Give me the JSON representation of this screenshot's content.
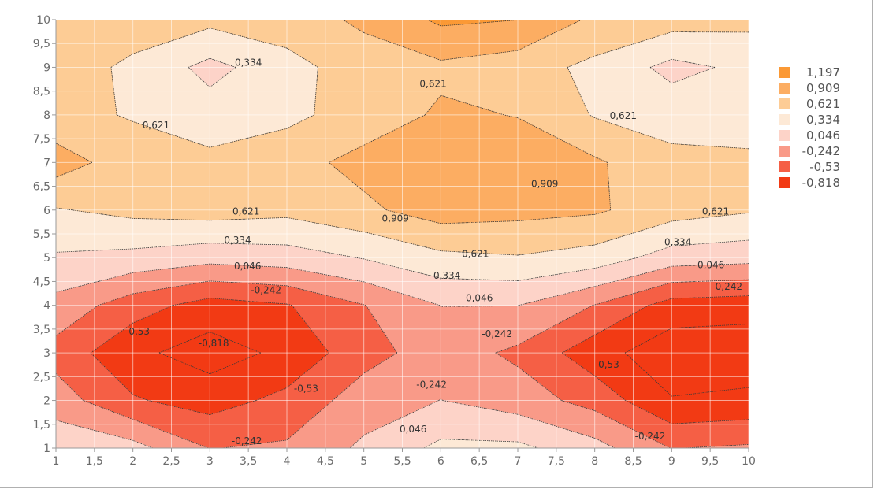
{
  "chart_data": {
    "type": "heatmap",
    "subtype": "filled-contour",
    "xlim": [
      1,
      10
    ],
    "ylim": [
      1,
      10
    ],
    "x_ticks": [
      "1",
      "1,5",
      "2",
      "2,5",
      "3",
      "3,5",
      "4",
      "4,5",
      "5",
      "5,5",
      "6",
      "6,5",
      "7",
      "7,5",
      "8",
      "8,5",
      "9",
      "9,5",
      "10"
    ],
    "y_ticks": [
      "1",
      "1,5",
      "2",
      "2,5",
      "3",
      "3,5",
      "4",
      "4,5",
      "5",
      "5,5",
      "6",
      "6,5",
      "7",
      "7,5",
      "8",
      "8,5",
      "9",
      "9,5",
      "10"
    ],
    "x": [
      1,
      2,
      3,
      4,
      5,
      6,
      7,
      8,
      9,
      10
    ],
    "y": [
      1,
      2,
      3,
      4,
      5,
      6,
      7,
      8,
      9,
      10
    ],
    "z": [
      [
        0.25,
        0.15,
        -0.25,
        -0.2,
        0.1,
        0.4,
        0.4,
        0.15,
        -0.25,
        -0.2
      ],
      [
        -0.1,
        -0.5,
        -0.65,
        -0.45,
        -0.1,
        0.05,
        -0.1,
        -0.35,
        -0.8,
        -0.75
      ],
      [
        -0.35,
        -0.75,
        -0.95,
        -0.75,
        -0.35,
        -0.1,
        -0.3,
        -0.7,
        -1.0,
        -1.0
      ],
      [
        -0.05,
        -0.4,
        -0.65,
        -0.55,
        -0.25,
        0.05,
        0.05,
        -0.25,
        -0.65,
        -0.7
      ],
      [
        0.3,
        0.25,
        0.15,
        0.2,
        0.35,
        0.55,
        0.6,
        0.5,
        0.2,
        0.15
      ],
      [
        0.6,
        0.7,
        0.75,
        0.7,
        0.85,
        1.05,
        1.0,
        0.95,
        0.75,
        0.65
      ],
      [
        1.05,
        0.75,
        0.7,
        0.8,
        1.0,
        1.1,
        1.05,
        0.95,
        0.7,
        0.65
      ],
      [
        0.7,
        0.6,
        0.45,
        0.55,
        0.75,
        0.95,
        0.9,
        0.6,
        0.5,
        0.55
      ],
      [
        0.8,
        0.55,
        0.25,
        0.5,
        0.8,
        0.85,
        0.75,
        0.55,
        0.25,
        0.4
      ],
      [
        0.85,
        0.8,
        0.7,
        0.8,
        0.95,
        1.25,
        1.2,
        0.85,
        0.75,
        0.7
      ]
    ],
    "levels": [
      -0.818,
      -0.53,
      -0.242,
      0.046,
      0.334,
      0.621,
      0.909,
      1.197
    ],
    "legend_position": "right",
    "grid": true,
    "colors": {
      "band_lt_-0.818": "#f23a14",
      "band_-0.818": "#f55f45",
      "band_-0.53": "#f99a88",
      "band_-0.242": "#fdd3c8",
      "band_0.046": "#fde9d6",
      "band_0.334": "#fdcc95",
      "band_0.621": "#fcad62",
      "band_0.909": "#fb9935"
    },
    "legend": [
      {
        "label": "1,197",
        "color": "#fb9935"
      },
      {
        "label": "0,909",
        "color": "#fcad62"
      },
      {
        "label": "0,621",
        "color": "#fdcc95"
      },
      {
        "label": "0,334",
        "color": "#fde9d6"
      },
      {
        "label": "0,046",
        "color": "#fdd3c8"
      },
      {
        "label": "-0,242",
        "color": "#f99a88"
      },
      {
        "label": "-0,53",
        "color": "#f55f45"
      },
      {
        "label": "-0,818",
        "color": "#f23a14"
      }
    ],
    "contour_labels": [
      {
        "text": "0,334",
        "x": 3.5,
        "y": 9.1
      },
      {
        "text": "0,621",
        "x": 5.9,
        "y": 8.65
      },
      {
        "text": "0,621",
        "x": 2.3,
        "y": 7.78
      },
      {
        "text": "0,621",
        "x": 8.37,
        "y": 7.98
      },
      {
        "text": "0,909",
        "x": 7.35,
        "y": 6.55
      },
      {
        "text": "0,909",
        "x": 5.41,
        "y": 5.82
      },
      {
        "text": "0,621",
        "x": 3.47,
        "y": 5.97
      },
      {
        "text": "0,621",
        "x": 6.45,
        "y": 5.08
      },
      {
        "text": "0,621",
        "x": 9.57,
        "y": 5.97
      },
      {
        "text": "0,334",
        "x": 3.36,
        "y": 5.37
      },
      {
        "text": "0,334",
        "x": 9.08,
        "y": 5.33
      },
      {
        "text": "0,334",
        "x": 6.08,
        "y": 4.62
      },
      {
        "text": "0,046",
        "x": 3.49,
        "y": 4.82
      },
      {
        "text": "0,046",
        "x": 9.51,
        "y": 4.85
      },
      {
        "text": "0,046",
        "x": 6.5,
        "y": 4.15
      },
      {
        "text": "-0,242",
        "x": 3.73,
        "y": 4.32
      },
      {
        "text": "-0,242",
        "x": 9.72,
        "y": 4.39
      },
      {
        "text": "-0,242",
        "x": 6.73,
        "y": 3.4
      },
      {
        "text": "-0,53",
        "x": 2.06,
        "y": 3.45
      },
      {
        "text": "-0,818",
        "x": 3.05,
        "y": 3.2
      },
      {
        "text": "-0,53",
        "x": 8.16,
        "y": 2.75
      },
      {
        "text": "-0,53",
        "x": 4.25,
        "y": 2.25
      },
      {
        "text": "-0,242",
        "x": 5.88,
        "y": 2.33
      },
      {
        "text": "0,046",
        "x": 5.64,
        "y": 1.4
      },
      {
        "text": "-0,242",
        "x": 3.48,
        "y": 1.15
      },
      {
        "text": "-0,242",
        "x": 8.72,
        "y": 1.25
      }
    ]
  }
}
